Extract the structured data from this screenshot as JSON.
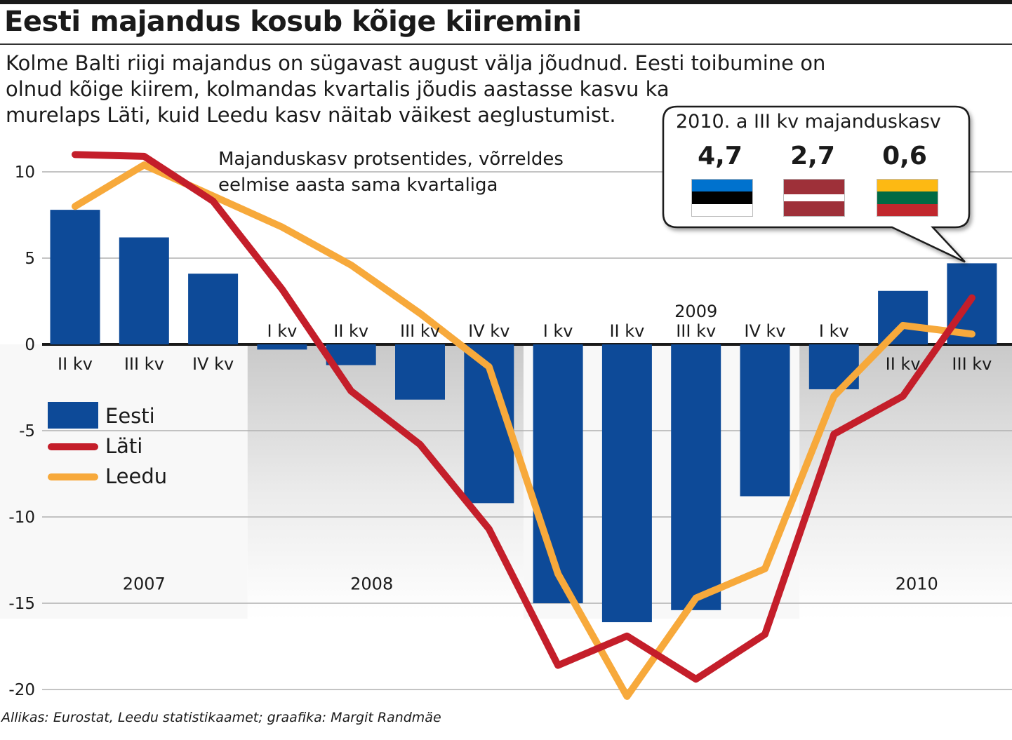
{
  "title": "Eesti majandus kosub kõige kiiremini",
  "subtitle_lines": [
    "Kolme Balti riigi majandus on sügavast august välja jõudnud. Eesti toibumine on",
    "olnud kõige kiirem, kolmandas kvartalis jõudis aastasse kasvu ka",
    "murelaps Läti, kuid Leedu kasv näitab väikest aeglustumist."
  ],
  "source": "Allikas: Eurostat, Leedu statistikaamet; graafika: Margit Randmäe",
  "callout": {
    "title": "2010. a III kv majanduskasv",
    "values": [
      "4,7",
      "2,7",
      "0,6"
    ],
    "flags": [
      {
        "name": "estonia",
        "colors": [
          "#0072CE",
          "#000000",
          "#FFFFFF"
        ]
      },
      {
        "name": "latvia",
        "colors": [
          "#9E3039",
          "#FFFFFF",
          "#9E3039"
        ]
      },
      {
        "name": "lithuania",
        "colors": [
          "#FDB913",
          "#006A44",
          "#C1272D"
        ]
      }
    ]
  },
  "chart_data": {
    "type": "bar",
    "note_lines": [
      "Majanduskasv protsentides, võrreldes",
      "eelmise aasta sama kvartaliga"
    ],
    "categories": [
      "II kv",
      "III kv",
      "IV kv",
      "I kv",
      "II kv",
      "III kv",
      "IV kv",
      "I kv",
      "II kv",
      "III kv",
      "IV kv",
      "I kv",
      "II kv",
      "III kv"
    ],
    "category_years": [
      "2007",
      "2007",
      "2007",
      "2008",
      "2008",
      "2008",
      "2008",
      "2009",
      "2009",
      "2009",
      "2009",
      "2010",
      "2010",
      "2010"
    ],
    "year_labels": [
      {
        "label": "2007",
        "index": 1,
        "row": "bottom"
      },
      {
        "label": "2008",
        "index": 4.3,
        "row": "bottom"
      },
      {
        "label": "2009",
        "index": 9,
        "row": "top"
      },
      {
        "label": "2010",
        "index": 12.2,
        "row": "bottom"
      }
    ],
    "y_ticks": [
      10,
      5,
      0,
      -5,
      -10,
      -15,
      -20
    ],
    "y_tick_labels": [
      "10",
      "5",
      "0",
      "-5",
      "-10",
      "-15",
      "-20"
    ],
    "ylim": [
      -20.5,
      11
    ],
    "grid": true,
    "legend_position": "left",
    "series": [
      {
        "name": "Eesti",
        "kind": "bar",
        "color": "#0D4A98",
        "values": [
          7.8,
          6.2,
          4.1,
          -0.3,
          -1.2,
          -3.2,
          -9.2,
          -15.0,
          -16.1,
          -15.4,
          -8.8,
          -2.6,
          3.1,
          4.7
        ]
      },
      {
        "name": "Läti",
        "kind": "line",
        "color": "#C41E2A",
        "values": [
          11.0,
          10.9,
          8.3,
          3.2,
          -2.7,
          -5.8,
          -10.7,
          -18.6,
          -16.9,
          -19.4,
          -16.8,
          -5.2,
          -3.0,
          2.7
        ]
      },
      {
        "name": "Leedu",
        "kind": "line",
        "color": "#F7A93B",
        "values": [
          8.0,
          10.4,
          8.6,
          6.8,
          4.6,
          1.8,
          -1.3,
          -13.3,
          -20.4,
          -14.7,
          -13.0,
          -3.0,
          1.1,
          0.6
        ]
      }
    ]
  }
}
